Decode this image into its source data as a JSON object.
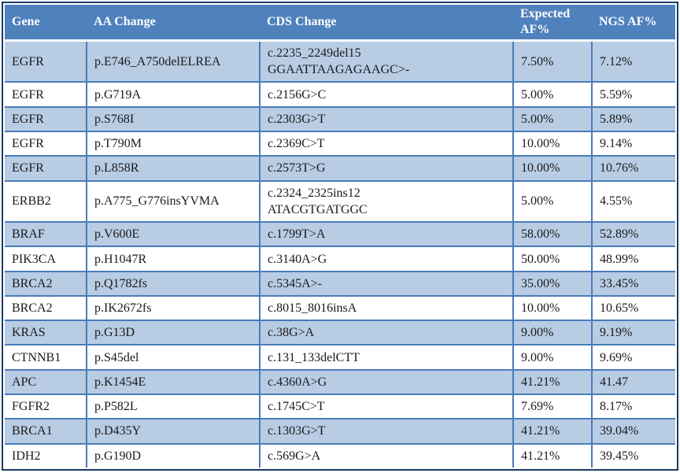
{
  "colors": {
    "header_bg": "#4f81bd",
    "header_text": "#ffffff",
    "stripe_row_bg": "#b8cce4",
    "plain_row_bg": "#ffffff",
    "inner_border": "#4a7cb8",
    "outer_border": "#1c3c63"
  },
  "table": {
    "columns": [
      {
        "key": "gene",
        "label": "Gene"
      },
      {
        "key": "aa",
        "label": "AA Change"
      },
      {
        "key": "cds",
        "label": "CDS Change"
      },
      {
        "key": "expected",
        "label": "Expected AF%"
      },
      {
        "key": "ngs",
        "label": "NGS AF%"
      }
    ],
    "rows": [
      {
        "gene": "EGFR",
        "aa": "p.E746_A750delELREA",
        "cds": "c.2235_2249del15\nGGAATTAAGAGAAGC>-",
        "expected": "7.50%",
        "ngs": "7.12%"
      },
      {
        "gene": "EGFR",
        "aa": "p.G719A",
        "cds": "c.2156G>C",
        "expected": "5.00%",
        "ngs": "5.59%"
      },
      {
        "gene": "EGFR",
        "aa": "p.S768I",
        "cds": "c.2303G>T",
        "expected": "5.00%",
        "ngs": "5.89%"
      },
      {
        "gene": "EGFR",
        "aa": "p.T790M",
        "cds": "c.2369C>T",
        "expected": "10.00%",
        "ngs": "9.14%"
      },
      {
        "gene": "EGFR",
        "aa": "p.L858R",
        "cds": "c.2573T>G",
        "expected": "10.00%",
        "ngs": "10.76%"
      },
      {
        "gene": "ERBB2",
        "aa": "p.A775_G776insYVMA",
        "cds": "c.2324_2325ins12\nATACGTGATGGC",
        "expected": "5.00%",
        "ngs": "4.55%"
      },
      {
        "gene": "BRAF",
        "aa": "p.V600E",
        "cds": "c.1799T>A",
        "expected": "58.00%",
        "ngs": "52.89%"
      },
      {
        "gene": "PIK3CA",
        "aa": "p.H1047R",
        "cds": "c.3140A>G",
        "expected": "50.00%",
        "ngs": "48.99%"
      },
      {
        "gene": "BRCA2",
        "aa": "p.Q1782fs",
        "cds": "c.5345A>-",
        "expected": "35.00%",
        "ngs": "33.45%"
      },
      {
        "gene": "BRCA2",
        "aa": "p.IK2672fs",
        "cds": "c.8015_8016insA",
        "expected": "10.00%",
        "ngs": "10.65%"
      },
      {
        "gene": "KRAS",
        "aa": "p.G13D",
        "cds": "c.38G>A",
        "expected": "9.00%",
        "ngs": "9.19%"
      },
      {
        "gene": "CTNNB1",
        "aa": "p.S45del",
        "cds": "c.131_133delCTT",
        "expected": "9.00%",
        "ngs": "9.69%"
      },
      {
        "gene": "APC",
        "aa": "p.K1454E",
        "cds": "c.4360A>G",
        "expected": "41.21%",
        "ngs": "41.47"
      },
      {
        "gene": "FGFR2",
        "aa": "p.P582L",
        "cds": "c.1745C>T",
        "expected": "7.69%",
        "ngs": "8.17%"
      },
      {
        "gene": "BRCA1",
        "aa": "p.D435Y",
        "cds": "c.1303G>T",
        "expected": "41.21%",
        "ngs": "39.04%"
      },
      {
        "gene": "IDH2",
        "aa": "p.G190D",
        "cds": "c.569G>A",
        "expected": "41.21%",
        "ngs": "39.45%"
      }
    ]
  }
}
